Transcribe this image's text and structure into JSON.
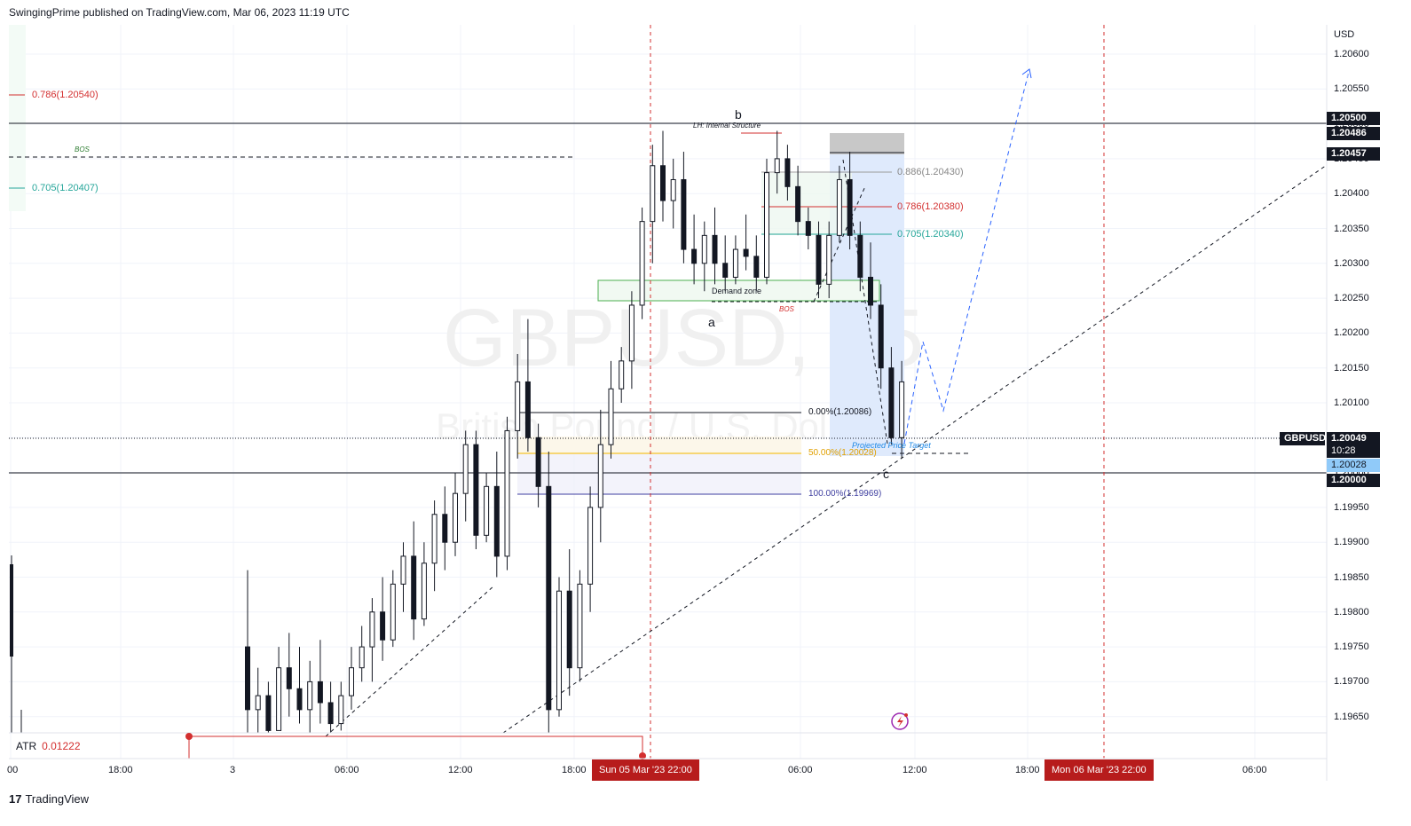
{
  "header": {
    "publisher_line": "SwingingPrime published on TradingView.com, Mar 06, 2023 11:19 UTC"
  },
  "watermark": {
    "symbol": "GBPUSD, 15",
    "description": "British Pound / U.S. Dollar"
  },
  "price_axis": {
    "currency": "USD",
    "ticks": [
      "1.20600",
      "1.20550",
      "1.20500",
      "1.20450",
      "1.20400",
      "1.20350",
      "1.20300",
      "1.20250",
      "1.20200",
      "1.20150",
      "1.20100",
      "1.20050",
      "1.20000",
      "1.19950",
      "1.19900",
      "1.19850",
      "1.19800",
      "1.19750",
      "1.19700",
      "1.19650"
    ],
    "tags": {
      "level_1": "1.20500",
      "level_2": "1.20486",
      "level_3": "1.20457",
      "symbol": "GBPUSD",
      "last_price": "1.20049",
      "countdown": "10:28",
      "bid": "1.20028",
      "level_4": "1.20000"
    }
  },
  "time_axis": {
    "ticks": [
      "00",
      "18:00",
      "3",
      "06:00",
      "12:00",
      "18:00",
      "06:00",
      "12:00",
      "18:00",
      "06:00"
    ],
    "highlight_1": "Sun 05 Mar '23   22:00",
    "highlight_2": "Mon 06 Mar '23   22:00"
  },
  "annotations": {
    "fib_left_786": "0.786(1.20540)",
    "fib_left_705": "0.705(1.20407)",
    "bos_left": "BOS",
    "point_b": "b",
    "lh_internal": "LH: Internal Structure",
    "point_a": "a",
    "demand_zone": "Demand zone",
    "bos_mid": "BOS",
    "fib_886": "0.886(1.20430)",
    "fib_786": "0.786(1.20380)",
    "fib_705": "0.705(1.20340)",
    "fib_0": "0.00%(1.20086)",
    "fib_50": "50.00%(1.20028)",
    "fib_100": "100.00%(1.19969)",
    "projected": "Projected Price Target",
    "point_c": "c"
  },
  "indicator": {
    "name": "ATR",
    "value": "0.01222"
  },
  "footer": {
    "brand": "TradingView",
    "logo": "17"
  },
  "colors": {
    "bull": "#ffffff",
    "bear": "#131722",
    "red": "#d32f2f",
    "green": "#26a69a",
    "blue": "#2962ff"
  },
  "chart_data": {
    "type": "candlestick",
    "ylim": [
      1.1961,
      1.2065
    ],
    "ohlc": [
      [
        1.1975,
        1.1986,
        1.196,
        1.1966
      ],
      [
        1.1966,
        1.1972,
        1.196,
        1.1968
      ],
      [
        1.1968,
        1.197,
        1.1962,
        1.1963
      ],
      [
        1.1963,
        1.1975,
        1.1963,
        1.1972
      ],
      [
        1.1972,
        1.1977,
        1.1965,
        1.1969
      ],
      [
        1.1969,
        1.1975,
        1.1964,
        1.1966
      ],
      [
        1.1966,
        1.1973,
        1.196,
        1.197
      ],
      [
        1.197,
        1.1976,
        1.1964,
        1.1967
      ],
      [
        1.1967,
        1.197,
        1.1961,
        1.1964
      ],
      [
        1.1964,
        1.197,
        1.1963,
        1.1968
      ],
      [
        1.1968,
        1.1975,
        1.1966,
        1.1972
      ],
      [
        1.1972,
        1.1978,
        1.197,
        1.1975
      ],
      [
        1.1975,
        1.1982,
        1.197,
        1.198
      ],
      [
        1.198,
        1.1985,
        1.1973,
        1.1976
      ],
      [
        1.1976,
        1.1986,
        1.1975,
        1.1984
      ],
      [
        1.1984,
        1.199,
        1.198,
        1.1988
      ],
      [
        1.1988,
        1.1993,
        1.1976,
        1.1979
      ],
      [
        1.1979,
        1.199,
        1.1978,
        1.1987
      ],
      [
        1.1987,
        1.1996,
        1.1983,
        1.1994
      ],
      [
        1.1994,
        1.1998,
        1.1986,
        1.199
      ],
      [
        1.199,
        1.2,
        1.1988,
        1.1997
      ],
      [
        1.1997,
        1.2006,
        1.1993,
        1.2004
      ],
      [
        1.2004,
        1.2006,
        1.1989,
        1.1991
      ],
      [
        1.1991,
        1.2,
        1.199,
        1.1998
      ],
      [
        1.1998,
        1.2003,
        1.1985,
        1.1988
      ],
      [
        1.1988,
        1.2008,
        1.1986,
        1.2006
      ],
      [
        1.2006,
        1.2017,
        1.2002,
        1.2013
      ],
      [
        1.2013,
        1.2022,
        1.2003,
        1.2005
      ],
      [
        1.2005,
        1.2007,
        1.1995,
        1.1998
      ],
      [
        1.1998,
        1.2003,
        1.196,
        1.1966
      ],
      [
        1.1966,
        1.1985,
        1.1965,
        1.1983
      ],
      [
        1.1983,
        1.1989,
        1.1968,
        1.1972
      ],
      [
        1.1972,
        1.1986,
        1.197,
        1.1984
      ],
      [
        1.1984,
        1.1998,
        1.198,
        1.1995
      ],
      [
        1.1995,
        1.2009,
        1.199,
        1.2004
      ],
      [
        1.2004,
        1.2016,
        1.2002,
        1.2012
      ],
      [
        1.2012,
        1.2018,
        1.201,
        1.2016
      ],
      [
        1.2016,
        1.2026,
        1.2012,
        1.2024
      ],
      [
        1.2024,
        1.2038,
        1.2022,
        1.2036
      ],
      [
        1.2036,
        1.2047,
        1.203,
        1.2044
      ],
      [
        1.2044,
        1.2049,
        1.2036,
        1.2039
      ],
      [
        1.2039,
        1.2045,
        1.2035,
        1.2042
      ],
      [
        1.2042,
        1.2046,
        1.203,
        1.2032
      ],
      [
        1.2032,
        1.2037,
        1.2027,
        1.203
      ],
      [
        1.203,
        1.2036,
        1.2026,
        1.2034
      ],
      [
        1.2034,
        1.2038,
        1.2027,
        1.203
      ],
      [
        1.203,
        1.2034,
        1.2026,
        1.2028
      ],
      [
        1.2028,
        1.2034,
        1.2027,
        1.2032
      ],
      [
        1.2032,
        1.2037,
        1.2029,
        1.2031
      ],
      [
        1.2031,
        1.2034,
        1.2026,
        1.2028
      ],
      [
        1.2028,
        1.2045,
        1.2027,
        1.2043
      ],
      [
        1.2043,
        1.2049,
        1.204,
        1.2045
      ],
      [
        1.2045,
        1.2047,
        1.2039,
        1.2041
      ],
      [
        1.2041,
        1.2044,
        1.2034,
        1.2036
      ],
      [
        1.2036,
        1.2038,
        1.2032,
        1.2034
      ],
      [
        1.2034,
        1.2036,
        1.2025,
        1.2027
      ],
      [
        1.2027,
        1.2036,
        1.2025,
        1.2034
      ],
      [
        1.2034,
        1.2044,
        1.2033,
        1.2042
      ],
      [
        1.2042,
        1.2046,
        1.2032,
        1.2034
      ],
      [
        1.2034,
        1.2036,
        1.2026,
        1.2028
      ],
      [
        1.2028,
        1.2033,
        1.2022,
        1.2024
      ],
      [
        1.2024,
        1.2027,
        1.2012,
        1.2015
      ],
      [
        1.2015,
        1.2018,
        1.2004,
        1.2005
      ],
      [
        1.2005,
        1.2016,
        1.2002,
        1.2013
      ]
    ]
  }
}
